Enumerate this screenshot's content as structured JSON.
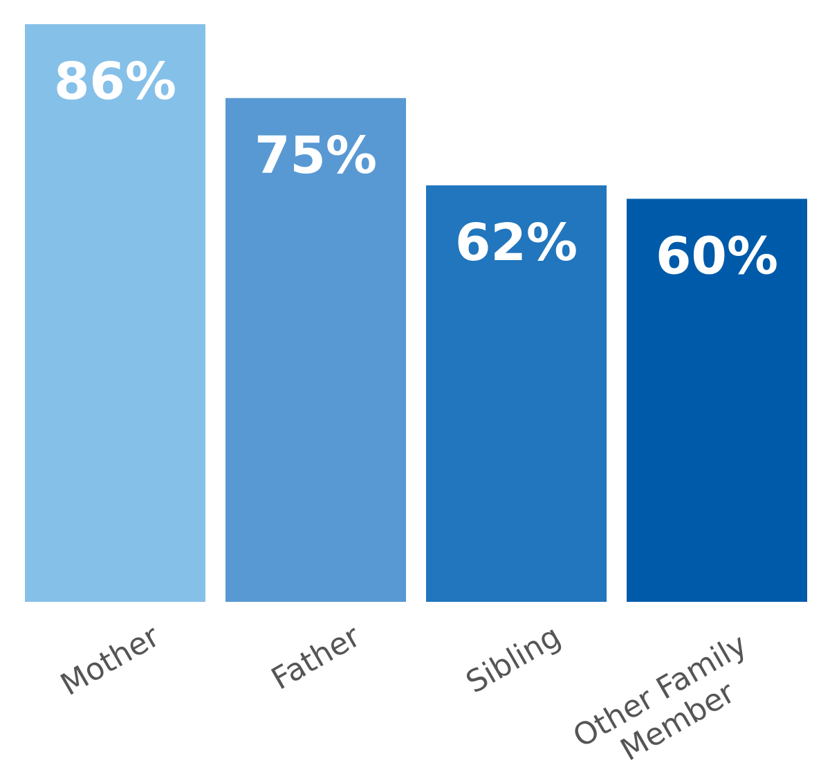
{
  "chart_data": {
    "type": "bar",
    "categories": [
      "Mother",
      "Father",
      "Sibling",
      "Other Family Member"
    ],
    "values": [
      86,
      75,
      62,
      60
    ],
    "value_labels": [
      "86%",
      "75%",
      "62%",
      "60%"
    ],
    "colors": [
      "#85c0e9",
      "#5899d3",
      "#2176bd",
      "#005aaa"
    ]
  }
}
